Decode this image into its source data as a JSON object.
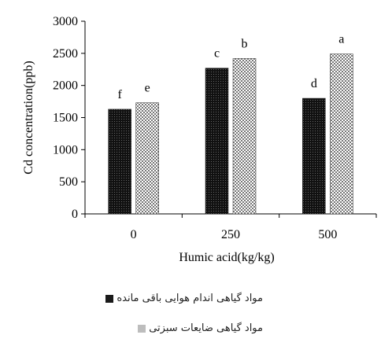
{
  "chart_data": {
    "type": "bar",
    "xlabel": "Humic acid(kg/kg)",
    "ylabel": "Cd concentration(ppb)",
    "categories": [
      "0",
      "250",
      "500"
    ],
    "ylim": [
      0,
      3000
    ],
    "yticks": [
      0,
      500,
      1000,
      1500,
      2000,
      2500,
      3000
    ],
    "series": [
      {
        "name": "مواد گیاهی اندام هوایی باقی مانده",
        "values": [
          1630,
          2270,
          1800
        ],
        "labels": [
          "f",
          "c",
          "d"
        ],
        "color": "#1a1a1a"
      },
      {
        "name": "مواد گیاهی ضایعات سبزتی",
        "values": [
          1730,
          2420,
          2490
        ],
        "labels": [
          "e",
          "b",
          "a"
        ],
        "color": "#bdbdbd"
      }
    ],
    "grid": false,
    "legend_position": "bottom"
  }
}
